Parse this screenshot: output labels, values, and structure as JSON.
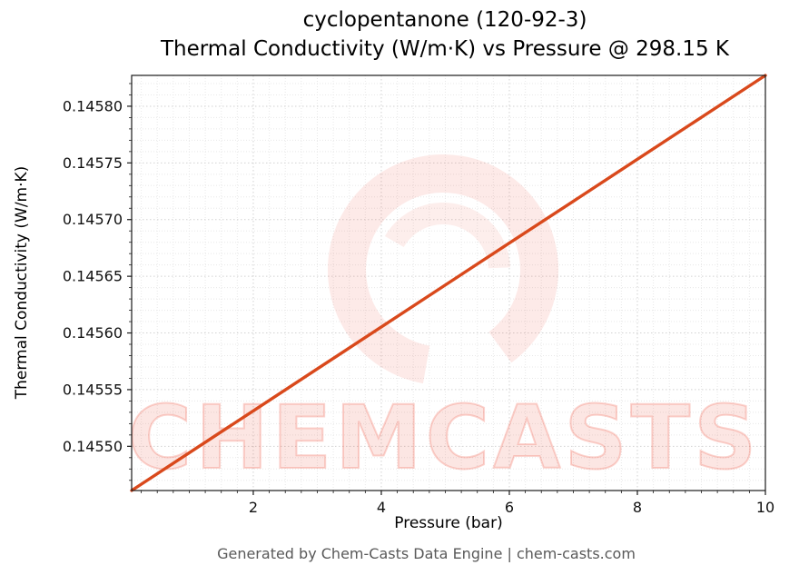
{
  "footer": {
    "text": "Generated by Chem-Casts Data Engine | chem-casts.com"
  },
  "watermark": {
    "text": "CHEMCASTS",
    "logo": "swirl-ring-logo",
    "color": "#ee5540"
  },
  "chart_data": {
    "type": "line",
    "title": "cyclopentanone (120-92-3)",
    "subtitle": "Thermal Conductivity (W/m·K) vs Pressure @ 298.15 K",
    "xlabel": "Pressure (bar)",
    "ylabel": "Thermal Conductivity (W/m·K)",
    "xlim": [
      0.1,
      10.0
    ],
    "ylim": [
      0.145461,
      0.1458272
    ],
    "xticks": [
      2,
      4,
      6,
      8,
      10
    ],
    "yticks": [
      0.1455,
      0.14555,
      0.1456,
      0.14565,
      0.1457,
      0.14575,
      0.1458
    ],
    "ytick_labels": [
      "0.14550",
      "0.14555",
      "0.14560",
      "0.14565",
      "0.14570",
      "0.14575",
      "0.14580"
    ],
    "grid": true,
    "legend": false,
    "line_color": "#d9491c",
    "series": [
      {
        "name": "Thermal Conductivity (W/m·K)",
        "x": [
          0.1,
          1,
          2,
          3,
          4,
          5,
          6,
          7,
          8,
          9,
          10
        ],
        "y": [
          0.145461,
          0.1454943,
          0.1455313,
          0.1455683,
          0.1456053,
          0.1456423,
          0.1456793,
          0.1457162,
          0.1457532,
          0.1457902,
          0.1458272
        ]
      }
    ]
  }
}
